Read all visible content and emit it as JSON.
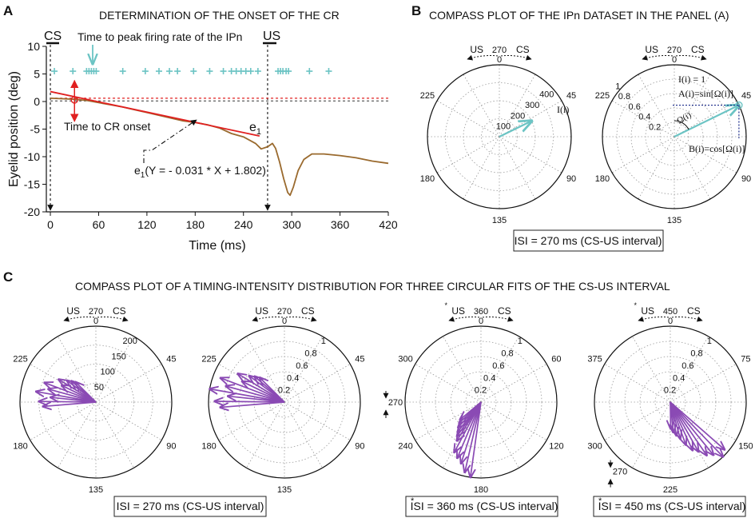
{
  "colors": {
    "cyan": "#6cc4c4",
    "red": "#e02020",
    "brown": "#9a6a2e",
    "purple": "#8a4ab4",
    "navy": "#1a2a8a",
    "grid": "#9a9a9a"
  },
  "panel_labels": {
    "a": "A",
    "b": "B",
    "c": "C"
  },
  "panel_a": {
    "title": "DETERMINATION OF THE ONSET OF THE CR",
    "cs_label": "CS",
    "us_label": "US",
    "peak_annotation": "Time to peak firing rate of the IPn",
    "onset_annotation": "Time to CR onset",
    "e1_label": "e",
    "e1_sub": "1",
    "eq_prefix": "e",
    "eq_sub": "1",
    "eq_text": "(Y = - 0.031 * X + 1.802)"
  },
  "panel_b": {
    "title": "COMPASS PLOT OF THE IPn DATASET IN THE PANEL (A)",
    "isi_box": "ISI = 270 ms (CS-US interval)",
    "left_vector_label": "I(i)",
    "right_annotations": [
      "I(i) = 1",
      "A(i)=sin[Ω(i)]",
      "Ω(i)",
      "B(i)=cos[Ω(i)]"
    ]
  },
  "panel_c": {
    "title": "COMPASS PLOT OF A TIMING-INTENSITY DISTRIBUTION FOR THREE CIRCULAR FITS OF THE CS-US INTERVAL",
    "box1": "ISI = 270 ms (CS-US interval)",
    "box2_star": "*",
    "box2": "ISI = 360 ms (CS-US interval)",
    "box3_star": "*",
    "box3": "ISI = 450 ms (CS-US interval)"
  },
  "chart_data": [
    {
      "type": "line",
      "id": "A",
      "title": "DETERMINATION OF THE ONSET OF THE CR",
      "xlabel": "Time (ms)",
      "ylabel": "Eyelid position (deg)",
      "xlim": [
        -5,
        420
      ],
      "ylim": [
        -20,
        10
      ],
      "xticks": [
        0,
        60,
        120,
        180,
        240,
        300,
        360,
        420
      ],
      "yticks": [
        10,
        5,
        0,
        -5,
        -10,
        -15,
        -20
      ],
      "cs_time": 0,
      "us_time": 270,
      "series": [
        {
          "name": "Eyelid position",
          "x": [
            0,
            15,
            30,
            45,
            60,
            75,
            90,
            105,
            120,
            135,
            150,
            165,
            180,
            195,
            210,
            225,
            240,
            255,
            262,
            270,
            273,
            276,
            280,
            285,
            290,
            295,
            298,
            302,
            308,
            315,
            325,
            340,
            360,
            380,
            400,
            420
          ],
          "y": [
            0.6,
            0.5,
            0.4,
            0.2,
            -0.2,
            -0.6,
            -1.0,
            -1.5,
            -2.0,
            -2.5,
            -3.0,
            -3.5,
            -3.8,
            -4.2,
            -4.8,
            -5.8,
            -6.4,
            -7.6,
            -8.6,
            -8.2,
            -7.9,
            -7.6,
            -8.5,
            -11,
            -14,
            -16.5,
            -17,
            -15.5,
            -12.5,
            -10.5,
            -9.5,
            -9.5,
            -9.8,
            -10.2,
            -10.8,
            -11.2
          ]
        },
        {
          "name": "Regression line e1",
          "x": [
            0,
            260
          ],
          "y": [
            1.802,
            -6.258
          ]
        },
        {
          "name": "Zero baseline",
          "x": [
            0,
            420
          ],
          "y": [
            0.1,
            0.1
          ]
        },
        {
          "name": "Threshold",
          "x": [
            0,
            420
          ],
          "y": [
            0.6,
            0.6
          ]
        }
      ],
      "ipn_spike_times": [
        5,
        28,
        45,
        48,
        51,
        54,
        57,
        90,
        118,
        135,
        148,
        158,
        178,
        198,
        215,
        225,
        231,
        237,
        243,
        249,
        258,
        283,
        286,
        289,
        293,
        296,
        322,
        346
      ],
      "ipn_spike_y": 5.5,
      "peak_firing_time": 48,
      "cr_onset_time": 30,
      "regression": {
        "slope": -0.031,
        "intercept": 1.802
      }
    },
    {
      "type": "compass",
      "id": "B-left",
      "isi_ms": 270,
      "radial_ticks": [
        100,
        200,
        300,
        400
      ],
      "rmax": 400,
      "angle_labels": [
        "0",
        "45",
        "90",
        "135",
        "180",
        "225"
      ],
      "top_labels": {
        "left": "US",
        "center": "270",
        "right": "CS"
      },
      "vectors": [
        {
          "angle_ms": 48,
          "magnitude": 200
        }
      ]
    },
    {
      "type": "compass",
      "id": "B-right",
      "isi_ms": 270,
      "radial_ticks": [
        0.2,
        0.4,
        0.6,
        0.8,
        1
      ],
      "rmax": 1,
      "angle_labels": [
        "0",
        "45",
        "90",
        "135",
        "180",
        "225"
      ],
      "top_labels": {
        "left": "US",
        "center": "270",
        "right": "CS"
      },
      "vectors": [
        {
          "angle_ms": 48,
          "magnitude": 1
        }
      ]
    },
    {
      "type": "compass",
      "id": "C-1",
      "isi_ms": 270,
      "radial_ticks": [
        50,
        100,
        150,
        200
      ],
      "rmax": 200,
      "angle_labels": [
        "0",
        "45",
        "90",
        "135",
        "180",
        "225"
      ],
      "top_labels": {
        "left": "US",
        "center": "270",
        "right": "CS"
      },
      "vectors": [
        {
          "angle_ms": 199,
          "magnitude": 140
        },
        {
          "angle_ms": 203,
          "magnitude": 150
        },
        {
          "angle_ms": 207,
          "magnitude": 120
        },
        {
          "angle_ms": 210,
          "magnitude": 160
        },
        {
          "angle_ms": 214,
          "magnitude": 130
        },
        {
          "angle_ms": 218,
          "magnitude": 145
        },
        {
          "angle_ms": 222,
          "magnitude": 100
        },
        {
          "angle_ms": 226,
          "magnitude": 115
        },
        {
          "angle_ms": 230,
          "magnitude": 95
        },
        {
          "angle_ms": 233,
          "magnitude": 85
        },
        {
          "angle_ms": 236,
          "magnitude": 75
        }
      ]
    },
    {
      "type": "compass",
      "id": "C-2",
      "isi_ms": 270,
      "radial_ticks": [
        0.2,
        0.4,
        0.6,
        0.8,
        1
      ],
      "rmax": 1,
      "angle_labels": [
        "0",
        "45",
        "90",
        "135",
        "180",
        "225"
      ],
      "top_labels": {
        "left": "US",
        "center": "270",
        "right": "CS"
      },
      "vectors": [
        {
          "angle_ms": 199,
          "magnitude": 0.85
        },
        {
          "angle_ms": 203,
          "magnitude": 0.92
        },
        {
          "angle_ms": 207,
          "magnitude": 0.75
        },
        {
          "angle_ms": 210,
          "magnitude": 1.0
        },
        {
          "angle_ms": 214,
          "magnitude": 0.8
        },
        {
          "angle_ms": 218,
          "magnitude": 0.9
        },
        {
          "angle_ms": 222,
          "magnitude": 0.62
        },
        {
          "angle_ms": 226,
          "magnitude": 0.72
        },
        {
          "angle_ms": 230,
          "magnitude": 0.58
        },
        {
          "angle_ms": 233,
          "magnitude": 0.52
        },
        {
          "angle_ms": 236,
          "magnitude": 0.46
        }
      ]
    },
    {
      "type": "compass",
      "id": "C-3",
      "isi_ms": 360,
      "radial_ticks": [
        0.2,
        0.4,
        0.6,
        0.8,
        1
      ],
      "rmax": 1,
      "angle_labels": [
        "0",
        "60",
        "120",
        "180",
        "240",
        "300"
      ],
      "side_label": "270",
      "top_labels": {
        "left": "US",
        "star": "*",
        "center": "360",
        "right": "CS"
      },
      "vectors": [
        {
          "angle_ms": 188,
          "magnitude": 1.0
        },
        {
          "angle_ms": 193,
          "magnitude": 0.95
        },
        {
          "angle_ms": 198,
          "magnitude": 0.85
        },
        {
          "angle_ms": 203,
          "magnitude": 0.8
        },
        {
          "angle_ms": 208,
          "magnitude": 0.75
        },
        {
          "angle_ms": 212,
          "magnitude": 0.6
        },
        {
          "angle_ms": 215,
          "magnitude": 0.55
        },
        {
          "angle_ms": 218,
          "magnitude": 0.5
        },
        {
          "angle_ms": 222,
          "magnitude": 0.45
        },
        {
          "angle_ms": 226,
          "magnitude": 0.4
        },
        {
          "angle_ms": 230,
          "magnitude": 0.36
        }
      ]
    },
    {
      "type": "compass",
      "id": "C-4",
      "isi_ms": 450,
      "radial_ticks": [
        0.2,
        0.4,
        0.6,
        0.8,
        1
      ],
      "rmax": 1,
      "angle_labels": [
        "0",
        "75",
        "150",
        "225",
        "300",
        "375"
      ],
      "side_label": "270",
      "top_labels": {
        "left": "US",
        "star": "*",
        "center": "450",
        "right": "CS"
      },
      "vectors": [
        {
          "angle_ms": 164,
          "magnitude": 0.95
        },
        {
          "angle_ms": 170,
          "magnitude": 1.0
        },
        {
          "angle_ms": 176,
          "magnitude": 0.9
        },
        {
          "angle_ms": 182,
          "magnitude": 0.85
        },
        {
          "angle_ms": 188,
          "magnitude": 0.75
        },
        {
          "angle_ms": 194,
          "magnitude": 0.7
        },
        {
          "angle_ms": 200,
          "magnitude": 0.6
        },
        {
          "angle_ms": 206,
          "magnitude": 0.5
        },
        {
          "angle_ms": 212,
          "magnitude": 0.45
        },
        {
          "angle_ms": 218,
          "magnitude": 0.4
        },
        {
          "angle_ms": 224,
          "magnitude": 0.35
        }
      ]
    }
  ]
}
